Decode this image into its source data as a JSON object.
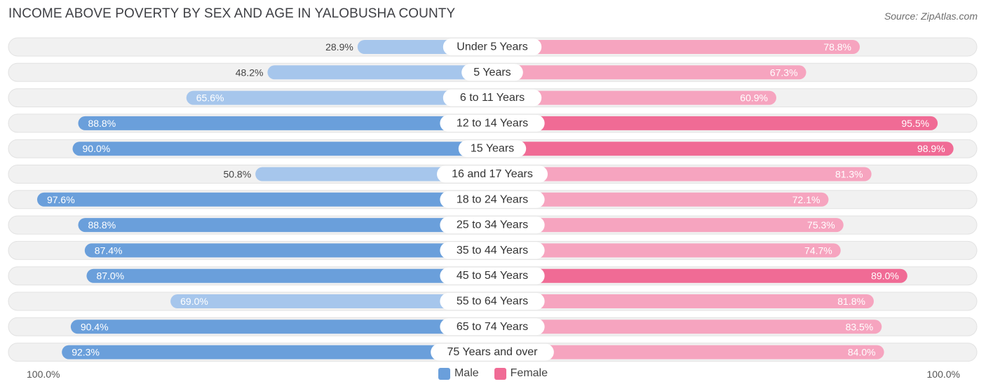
{
  "title": "INCOME ABOVE POVERTY BY SEX AND AGE IN YALOBUSHA COUNTY",
  "source": "Source: ZipAtlas.com",
  "axis": {
    "left_label": "100.0%",
    "right_label": "100.0%"
  },
  "legend": {
    "male": "Male",
    "female": "Female"
  },
  "colors": {
    "male_strong": "#6a9fdb",
    "male_light": "#a6c6ec",
    "female_strong": "#f06b95",
    "female_light": "#f6a4bf",
    "track": "#f1f1f1"
  },
  "chart_data": {
    "type": "bar",
    "orientation": "horizontal-diverging",
    "xlim": [
      0,
      100
    ],
    "categories": [
      "Under 5 Years",
      "5 Years",
      "6 to 11 Years",
      "12 to 14 Years",
      "15 Years",
      "16 and 17 Years",
      "18 to 24 Years",
      "25 to 34 Years",
      "35 to 44 Years",
      "45 to 54 Years",
      "55 to 64 Years",
      "65 to 74 Years",
      "75 Years and over"
    ],
    "series": [
      {
        "name": "Male",
        "values": [
          28.9,
          48.2,
          65.6,
          88.8,
          90.0,
          50.8,
          97.6,
          88.8,
          87.4,
          87.0,
          69.0,
          90.4,
          92.3
        ],
        "labels": [
          "28.9%",
          "48.2%",
          "65.6%",
          "88.8%",
          "90.0%",
          "50.8%",
          "97.6%",
          "88.8%",
          "87.4%",
          "87.0%",
          "69.0%",
          "90.4%",
          "92.3%"
        ]
      },
      {
        "name": "Female",
        "values": [
          78.8,
          67.3,
          60.9,
          95.5,
          98.9,
          81.3,
          72.1,
          75.3,
          74.7,
          89.0,
          81.8,
          83.5,
          84.0
        ],
        "labels": [
          "78.8%",
          "67.3%",
          "60.9%",
          "95.5%",
          "98.9%",
          "81.3%",
          "72.1%",
          "75.3%",
          "74.7%",
          "89.0%",
          "81.8%",
          "83.5%",
          "84.0%"
        ]
      }
    ]
  }
}
